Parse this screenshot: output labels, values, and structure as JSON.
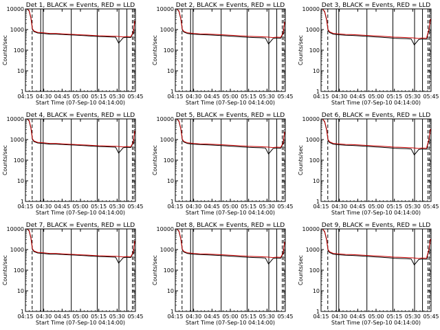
{
  "colors": {
    "events": "#000000",
    "lld": "#cc0000",
    "background": "#ffffff"
  },
  "shared_axes": {
    "ylabel": "Counts/sec",
    "xlabel": "Start Time (07-Sep-10 04:14:00)",
    "yscale": "log",
    "ylim": [
      1,
      10000
    ],
    "y_ticks": [
      {
        "value": 1,
        "label": "1"
      },
      {
        "value": 10,
        "label": "10"
      },
      {
        "value": 100,
        "label": "100"
      },
      {
        "value": 1000,
        "label": "1000"
      },
      {
        "value": 10000,
        "label": "10000"
      }
    ],
    "xlim_minutes_after_0415": [
      0,
      36
    ],
    "x_ticks": [
      {
        "value": 0,
        "label": "04:15"
      },
      {
        "value": 6,
        "label": "04:30"
      },
      {
        "value": 12,
        "label": "04:45"
      },
      {
        "value": 18,
        "label": "05:00"
      },
      {
        "value": 24,
        "label": "05:15"
      },
      {
        "value": 30,
        "label": "05:30"
      },
      {
        "value": 36,
        "label": "05:45"
      }
    ]
  },
  "chart_data": [
    {
      "type": "line",
      "title": "Det 1, BLACK = Events, RED = LLD",
      "xlabel": "Start Time (07-Sep-10 04:14:00)",
      "ylabel": "Counts/sec",
      "series": [
        {
          "name": "Events",
          "x": [
            0.5,
            1.2,
            1.8,
            2.3,
            2.8,
            4,
            6,
            8,
            10,
            12,
            14,
            16,
            18,
            20,
            22,
            24,
            26,
            28,
            29.5,
            30.5,
            32,
            33,
            34.5,
            35.3,
            35.8
          ],
          "y": [
            10000,
            8000,
            3500,
            1000,
            800,
            680,
            640,
            600,
            600,
            580,
            560,
            540,
            520,
            500,
            480,
            460,
            450,
            440,
            430,
            220,
            400,
            420,
            410,
            700,
            2500
          ]
        },
        {
          "name": "LLD",
          "x": [
            0.5,
            1.2,
            1.8,
            2.3,
            2.8,
            4,
            6,
            8,
            10,
            12,
            14,
            16,
            18,
            20,
            22,
            24,
            26,
            28,
            29.5,
            30.5,
            32,
            33,
            34.5,
            35.3,
            35.8
          ],
          "y": [
            10000,
            8500,
            3800,
            1100,
            860,
            730,
            690,
            650,
            650,
            620,
            600,
            580,
            560,
            540,
            520,
            500,
            490,
            480,
            470,
            460,
            440,
            460,
            450,
            760,
            2700
          ]
        }
      ]
    },
    {
      "type": "line",
      "title": "Det 2, BLACK = Events, RED = LLD",
      "xlabel": "Start Time (07-Sep-10 04:14:00)",
      "ylabel": "Counts/sec",
      "series": [
        {
          "name": "Events",
          "x": [
            0.5,
            1.2,
            1.8,
            2.3,
            2.8,
            4,
            6,
            8,
            10,
            12,
            14,
            16,
            18,
            20,
            22,
            24,
            26,
            28,
            29.5,
            30.5,
            32,
            33,
            34.5,
            35.3,
            35.8
          ],
          "y": [
            10000,
            7500,
            3200,
            950,
            760,
            640,
            600,
            570,
            560,
            540,
            520,
            500,
            480,
            460,
            440,
            420,
            410,
            400,
            390,
            200,
            370,
            390,
            380,
            650,
            2200
          ]
        },
        {
          "name": "LLD",
          "x": [
            0.5,
            1.2,
            1.8,
            2.3,
            2.8,
            4,
            6,
            8,
            10,
            12,
            14,
            16,
            18,
            20,
            22,
            24,
            26,
            28,
            29.5,
            30.5,
            32,
            33,
            34.5,
            35.3,
            35.8
          ],
          "y": [
            10000,
            8000,
            3500,
            1050,
            820,
            690,
            650,
            620,
            610,
            590,
            570,
            550,
            530,
            510,
            490,
            470,
            460,
            450,
            440,
            430,
            410,
            430,
            420,
            700,
            2400
          ]
        }
      ]
    },
    {
      "type": "line",
      "title": "Det 3, BLACK = Events, RED = LLD",
      "xlabel": "Start Time (07-Sep-10 04:14:00)",
      "ylabel": "Counts/sec",
      "series": [
        {
          "name": "Events",
          "x": [
            0.5,
            1.2,
            1.8,
            2.3,
            2.8,
            4,
            6,
            8,
            10,
            12,
            14,
            16,
            18,
            20,
            22,
            24,
            26,
            28,
            29.5,
            30.5,
            32,
            33,
            34.5,
            35.3,
            35.8
          ],
          "y": [
            10000,
            7000,
            3000,
            900,
            720,
            600,
            560,
            530,
            520,
            500,
            480,
            460,
            440,
            420,
            400,
            380,
            370,
            360,
            350,
            180,
            330,
            350,
            340,
            900,
            3000
          ]
        },
        {
          "name": "LLD",
          "x": [
            0.5,
            1.2,
            1.8,
            2.3,
            2.8,
            4,
            6,
            8,
            10,
            12,
            14,
            16,
            18,
            20,
            22,
            24,
            26,
            28,
            29.5,
            30.5,
            32,
            33,
            34.5,
            35.3,
            35.8
          ],
          "y": [
            10000,
            7500,
            3300,
            1000,
            780,
            650,
            610,
            580,
            570,
            550,
            530,
            510,
            490,
            470,
            450,
            430,
            420,
            410,
            400,
            390,
            370,
            390,
            380,
            1000,
            3300
          ]
        }
      ]
    },
    {
      "type": "line",
      "title": "Det 4, BLACK = Events, RED = LLD",
      "xlabel": "Start Time (07-Sep-10 04:14:00)",
      "ylabel": "Counts/sec",
      "series": [
        {
          "name": "Events",
          "x": [
            0.5,
            1.2,
            1.8,
            2.3,
            2.8,
            4,
            6,
            8,
            10,
            12,
            14,
            16,
            18,
            20,
            22,
            24,
            26,
            28,
            29.5,
            30.5,
            32,
            33,
            34.5,
            35.3,
            35.8
          ],
          "y": [
            10000,
            8000,
            3500,
            1000,
            800,
            680,
            640,
            600,
            600,
            580,
            560,
            540,
            520,
            500,
            480,
            460,
            450,
            440,
            430,
            220,
            400,
            420,
            410,
            700,
            2500
          ]
        },
        {
          "name": "LLD",
          "x": [
            0.5,
            1.2,
            1.8,
            2.3,
            2.8,
            4,
            6,
            8,
            10,
            12,
            14,
            16,
            18,
            20,
            22,
            24,
            26,
            28,
            29.5,
            30.5,
            32,
            33,
            34.5,
            35.3,
            35.8
          ],
          "y": [
            10000,
            8500,
            3800,
            1100,
            860,
            730,
            690,
            650,
            650,
            620,
            600,
            580,
            560,
            540,
            520,
            500,
            490,
            480,
            470,
            460,
            440,
            460,
            450,
            760,
            2700
          ]
        }
      ]
    },
    {
      "type": "line",
      "title": "Det 5, BLACK = Events, RED = LLD",
      "xlabel": "Start Time (07-Sep-10 04:14:00)",
      "ylabel": "Counts/sec",
      "series": [
        {
          "name": "Events",
          "x": [
            0.5,
            1.2,
            1.8,
            2.3,
            2.8,
            4,
            6,
            8,
            10,
            12,
            14,
            16,
            18,
            20,
            22,
            24,
            26,
            28,
            29.5,
            30.5,
            32,
            33,
            34.5,
            35.3,
            35.8
          ],
          "y": [
            10000,
            7500,
            3200,
            950,
            760,
            640,
            600,
            570,
            560,
            540,
            520,
            500,
            480,
            460,
            440,
            420,
            410,
            400,
            390,
            200,
            370,
            390,
            380,
            650,
            2200
          ]
        },
        {
          "name": "LLD",
          "x": [
            0.5,
            1.2,
            1.8,
            2.3,
            2.8,
            4,
            6,
            8,
            10,
            12,
            14,
            16,
            18,
            20,
            22,
            24,
            26,
            28,
            29.5,
            30.5,
            32,
            33,
            34.5,
            35.3,
            35.8
          ],
          "y": [
            10000,
            8000,
            3500,
            1050,
            820,
            690,
            650,
            620,
            610,
            590,
            570,
            550,
            530,
            510,
            490,
            470,
            460,
            450,
            440,
            430,
            410,
            430,
            420,
            700,
            2400
          ]
        }
      ]
    },
    {
      "type": "line",
      "title": "Det 6, BLACK = Events, RED = LLD",
      "xlabel": "Start Time (07-Sep-10 04:14:00)",
      "ylabel": "Counts/sec",
      "series": [
        {
          "name": "Events",
          "x": [
            0.5,
            1.2,
            1.8,
            2.3,
            2.8,
            4,
            6,
            8,
            10,
            12,
            14,
            16,
            18,
            20,
            22,
            24,
            26,
            28,
            29.5,
            30.5,
            32,
            33,
            34.5,
            35.3,
            35.8
          ],
          "y": [
            10000,
            7000,
            3000,
            900,
            720,
            600,
            560,
            530,
            520,
            500,
            480,
            460,
            440,
            420,
            400,
            380,
            370,
            360,
            350,
            180,
            330,
            350,
            340,
            900,
            3000
          ]
        },
        {
          "name": "LLD",
          "x": [
            0.5,
            1.2,
            1.8,
            2.3,
            2.8,
            4,
            6,
            8,
            10,
            12,
            14,
            16,
            18,
            20,
            22,
            24,
            26,
            28,
            29.5,
            30.5,
            32,
            33,
            34.5,
            35.3,
            35.8
          ],
          "y": [
            10000,
            7500,
            3300,
            1000,
            780,
            650,
            610,
            580,
            570,
            550,
            530,
            510,
            490,
            470,
            450,
            430,
            420,
            410,
            400,
            390,
            370,
            390,
            380,
            1000,
            3300
          ]
        }
      ]
    },
    {
      "type": "line",
      "title": "Det 7, BLACK = Events, RED = LLD",
      "xlabel": "Start Time (07-Sep-10 04:14:00)",
      "ylabel": "Counts/sec",
      "series": [
        {
          "name": "Events",
          "x": [
            0.5,
            1.2,
            1.8,
            2.3,
            2.8,
            4,
            6,
            8,
            10,
            12,
            14,
            16,
            18,
            20,
            22,
            24,
            26,
            28,
            29.5,
            30.5,
            32,
            33,
            34.5,
            35.3,
            35.8
          ],
          "y": [
            10000,
            8000,
            3500,
            1000,
            800,
            680,
            640,
            600,
            600,
            580,
            560,
            540,
            520,
            500,
            480,
            460,
            450,
            440,
            430,
            220,
            400,
            420,
            410,
            700,
            2500
          ]
        },
        {
          "name": "LLD",
          "x": [
            0.5,
            1.2,
            1.8,
            2.3,
            2.8,
            4,
            6,
            8,
            10,
            12,
            14,
            16,
            18,
            20,
            22,
            24,
            26,
            28,
            29.5,
            30.5,
            32,
            33,
            34.5,
            35.3,
            35.8
          ],
          "y": [
            10000,
            8500,
            3800,
            1100,
            860,
            730,
            690,
            650,
            650,
            620,
            600,
            580,
            560,
            540,
            520,
            500,
            490,
            480,
            470,
            460,
            440,
            460,
            450,
            760,
            2700
          ]
        }
      ]
    },
    {
      "type": "line",
      "title": "Det 8, BLACK = Events, RED = LLD",
      "xlabel": "Start Time (07-Sep-10 04:14:00)",
      "ylabel": "Counts/sec",
      "series": [
        {
          "name": "Events",
          "x": [
            0.5,
            1.2,
            1.8,
            2.3,
            2.8,
            4,
            6,
            8,
            10,
            12,
            14,
            16,
            18,
            20,
            22,
            24,
            26,
            28,
            29.5,
            30.5,
            32,
            33,
            34.5,
            35.3,
            35.8
          ],
          "y": [
            10000,
            7500,
            3200,
            950,
            760,
            640,
            600,
            570,
            560,
            540,
            520,
            500,
            480,
            460,
            440,
            420,
            410,
            400,
            390,
            200,
            370,
            390,
            380,
            650,
            2200
          ]
        },
        {
          "name": "LLD",
          "x": [
            0.5,
            1.2,
            1.8,
            2.3,
            2.8,
            4,
            6,
            8,
            10,
            12,
            14,
            16,
            18,
            20,
            22,
            24,
            26,
            28,
            29.5,
            30.5,
            32,
            33,
            34.5,
            35.3,
            35.8
          ],
          "y": [
            10000,
            8000,
            3500,
            1050,
            820,
            690,
            650,
            620,
            610,
            590,
            570,
            550,
            530,
            510,
            490,
            470,
            460,
            450,
            440,
            430,
            410,
            430,
            420,
            700,
            2400
          ]
        }
      ]
    },
    {
      "type": "line",
      "title": "Det 9, BLACK = Events, RED = LLD",
      "xlabel": "Start Time (07-Sep-10 04:14:00)",
      "ylabel": "Counts/sec",
      "series": [
        {
          "name": "Events",
          "x": [
            0.5,
            1.2,
            1.8,
            2.3,
            2.8,
            4,
            6,
            8,
            10,
            12,
            14,
            16,
            18,
            20,
            22,
            24,
            26,
            28,
            29.5,
            30.5,
            32,
            33,
            34.5,
            35.3,
            35.8
          ],
          "y": [
            10000,
            7000,
            3000,
            900,
            720,
            600,
            560,
            530,
            520,
            500,
            480,
            460,
            440,
            420,
            400,
            380,
            370,
            360,
            350,
            180,
            330,
            350,
            340,
            900,
            3000
          ]
        },
        {
          "name": "LLD",
          "x": [
            0.5,
            1.2,
            1.8,
            2.3,
            2.8,
            4,
            6,
            8,
            10,
            12,
            14,
            16,
            18,
            20,
            22,
            24,
            26,
            28,
            29.5,
            30.5,
            32,
            33,
            34.5,
            35.3,
            35.8
          ],
          "y": [
            10000,
            7500,
            3300,
            1000,
            780,
            650,
            610,
            580,
            570,
            550,
            530,
            510,
            490,
            470,
            450,
            430,
            420,
            410,
            400,
            390,
            370,
            390,
            380,
            1000,
            3300
          ]
        }
      ]
    }
  ]
}
